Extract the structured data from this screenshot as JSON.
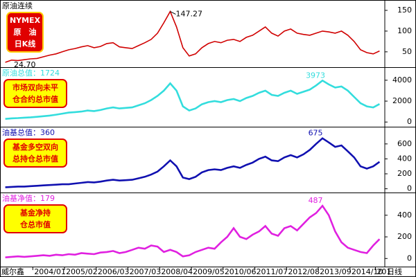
{
  "chart_data": [
    {
      "type": "line",
      "title": "原油连续",
      "badge": [
        "NYMEX",
        "原　油",
        "日K线"
      ],
      "color": "#d00000",
      "values": [
        24.7,
        30,
        29,
        31,
        33,
        34,
        38,
        42,
        45,
        50,
        55,
        58,
        62,
        65,
        60,
        63,
        70,
        72,
        62,
        60,
        58,
        65,
        72,
        80,
        95,
        120,
        147.27,
        110,
        60,
        40,
        45,
        60,
        70,
        75,
        72,
        78,
        80,
        75,
        85,
        90,
        100,
        110,
        95,
        88,
        100,
        105,
        95,
        92,
        90,
        95,
        100,
        98,
        95,
        100,
        90,
        75,
        55,
        48,
        45,
        52
      ],
      "annotations": [
        "147.27",
        "24.70"
      ],
      "ylim": [
        13,
        175
      ],
      "yticks": [
        50,
        100,
        150
      ]
    },
    {
      "type": "line",
      "title": "原油总值：1724",
      "badge": [
        "市场双向未平",
        "仓合约总市值"
      ],
      "color": "#33dddd",
      "values": [
        300,
        350,
        380,
        420,
        450,
        500,
        560,
        620,
        700,
        800,
        900,
        950,
        1000,
        1100,
        1050,
        1150,
        1300,
        1400,
        1300,
        1350,
        1400,
        1600,
        1800,
        2100,
        2500,
        3000,
        3700,
        3000,
        1500,
        1100,
        1300,
        1700,
        1900,
        2000,
        1900,
        2100,
        2200,
        2000,
        2300,
        2500,
        2800,
        3000,
        2600,
        2500,
        2800,
        3000,
        2700,
        2900,
        3100,
        3500,
        3973,
        3600,
        3300,
        3400,
        3000,
        2400,
        1800,
        1500,
        1400,
        1724
      ],
      "annotations": [
        "3973"
      ],
      "ylim": [
        -450,
        5250
      ],
      "yticks": [
        0,
        2000,
        4000
      ]
    },
    {
      "type": "line",
      "title": "油基总值：360",
      "badge": [
        "基金多空双向",
        "总持仓总市值"
      ],
      "color": "#1010b0",
      "values": [
        20,
        25,
        30,
        30,
        35,
        40,
        45,
        50,
        55,
        60,
        60,
        70,
        80,
        90,
        85,
        95,
        110,
        120,
        110,
        115,
        120,
        140,
        160,
        190,
        230,
        300,
        380,
        300,
        150,
        130,
        160,
        220,
        250,
        260,
        250,
        280,
        300,
        280,
        320,
        350,
        400,
        430,
        380,
        370,
        420,
        450,
        420,
        460,
        520,
        600,
        675,
        620,
        560,
        580,
        500,
        420,
        300,
        270,
        300,
        360
      ],
      "annotations": [
        "675"
      ],
      "ylim": [
        -50,
        830
      ],
      "yticks": [
        0,
        200,
        400,
        600
      ]
    },
    {
      "type": "line",
      "title": "油基净值：179",
      "badge": [
        "基金净持",
        "仓总市值"
      ],
      "color": "#e020e0",
      "values": [
        10,
        15,
        20,
        15,
        20,
        25,
        30,
        25,
        35,
        30,
        40,
        35,
        50,
        45,
        40,
        55,
        60,
        70,
        50,
        60,
        80,
        100,
        90,
        120,
        110,
        60,
        80,
        60,
        20,
        30,
        60,
        80,
        100,
        90,
        150,
        200,
        280,
        200,
        180,
        220,
        250,
        300,
        230,
        210,
        280,
        300,
        260,
        320,
        380,
        420,
        487,
        400,
        250,
        150,
        100,
        80,
        60,
        50,
        120,
        179
      ],
      "annotations": [
        "487"
      ],
      "ylim": [
        -75,
        610
      ],
      "yticks": [
        0,
        200,
        400
      ],
      "categories": [
        null,
        null,
        null,
        null,
        null,
        "2004/01",
        null,
        null,
        null,
        null,
        "2005/02",
        null,
        null,
        null,
        null,
        "2006/03",
        null,
        null,
        null,
        null,
        "2007/03",
        null,
        null,
        null,
        null,
        "2008/04",
        null,
        null,
        null,
        null,
        "2009/05",
        null,
        null,
        null,
        null,
        "2010/06",
        null,
        null,
        null,
        null,
        "2011/07",
        null,
        null,
        null,
        null,
        "2012/08",
        null,
        null,
        null,
        null,
        "2013/09",
        null,
        null,
        null,
        null,
        "2014/10",
        null,
        null,
        null,
        "201"
      ],
      "brand": "威尔鑫",
      "unit": "日线"
    }
  ]
}
